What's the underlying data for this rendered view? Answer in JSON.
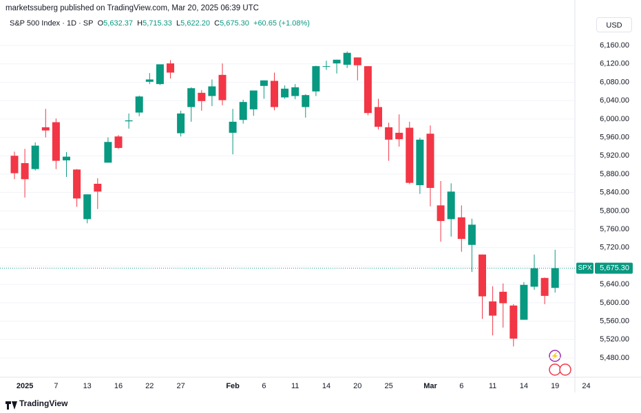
{
  "header": "marketssuberg published on TradingView.com, Mar 20, 2025 06:39 UTC",
  "footer": "TradingView",
  "currency_button": "USD",
  "legend": {
    "symbol": "S&P 500 Index · 1D · SP",
    "open_label": "O",
    "open": "5,632.37",
    "high_label": "H",
    "high": "5,715.33",
    "low_label": "L",
    "low": "5,622.20",
    "close_label": "C",
    "close": "5,675.30",
    "change": "+60.65 (+1.08%)"
  },
  "chart_data": {
    "type": "candlestick",
    "categories": [
      null,
      "2025",
      null,
      null,
      "7",
      null,
      null,
      "13",
      null,
      null,
      "16",
      null,
      null,
      "22",
      null,
      null,
      "27",
      null,
      null,
      null,
      null,
      "Feb",
      null,
      null,
      "6",
      null,
      null,
      "11",
      null,
      null,
      "14",
      null,
      null,
      "20",
      null,
      null,
      "25",
      null,
      null,
      null,
      "Mar",
      null,
      null,
      "6",
      null,
      null,
      "11",
      null,
      null,
      "14",
      null,
      null,
      "19",
      null,
      null,
      "24"
    ],
    "series": [
      {
        "name": "open",
        "values": [
          5920,
          5904,
          5891,
          5982,
          5993,
          5910,
          5890,
          5782,
          5859,
          5905,
          5962,
          5995,
          6014,
          6081,
          6076,
          6121,
          5969,
          6026,
          6057,
          6050,
          6096,
          5970,
          5998,
          6021,
          6072,
          6083,
          6047,
          6050,
          6026,
          6060,
          6115,
          6121,
          6118,
          6134,
          6115,
          6026,
          5982,
          5970,
          5981,
          5856,
          5968,
          5812,
          5782,
          5786,
          5726,
          5705,
          5603,
          5624,
          5594,
          5563,
          5635,
          5654,
          5632.37,
          null,
          null,
          null
        ]
      },
      {
        "name": "high",
        "values": [
          5929,
          5935,
          5949,
          6022,
          6001,
          5928,
          5891,
          5836,
          5871,
          5960,
          5965,
          6012,
          6051,
          6100,
          6119,
          6128,
          6018,
          6069,
          6063,
          6086,
          6121,
          6022,
          6042,
          6062,
          6084,
          6101,
          6073,
          6076,
          6054,
          6116,
          6127,
          6129,
          6147,
          6134,
          6115,
          6044,
          5992,
          6010,
          5994,
          5959,
          5986,
          5865,
          5860,
          5812,
          5783,
          5705,
          5636,
          5642,
          5597,
          5645,
          5705,
          5655,
          5715.33,
          null,
          null,
          null
        ]
      },
      {
        "name": "low",
        "values": [
          5869,
          5829,
          5888,
          5960,
          5891,
          5874,
          5809,
          5773,
          5804,
          5905,
          5935,
          5979,
          6006,
          6076,
          6074,
          6088,
          5962,
          5994,
          6018,
          6028,
          6030,
          5923,
          5990,
          6007,
          6044,
          6019,
          6044,
          6043,
          6003,
          6050,
          6107,
          6099,
          6111,
          6084,
          6008,
          5977,
          5909,
          5940,
          5858,
          5837,
          5810,
          5733,
          5744,
          5711,
          5667,
          5565,
          5529,
          5546,
          5505,
          5563,
          5628,
          5597,
          5622.2,
          null,
          null,
          null
        ]
      },
      {
        "name": "close",
        "values": [
          5882,
          5869,
          5942,
          5975,
          5909,
          5918,
          5827,
          5836,
          5842,
          5950,
          5937,
          5997,
          6049,
          6086,
          6119,
          6101,
          6012,
          6067,
          6039,
          6071,
          6041,
          5994,
          6037,
          6062,
          6084,
          6026,
          6066,
          6069,
          6052,
          6115,
          6115,
          6129,
          6144,
          6117,
          6013,
          5983,
          5955,
          5956,
          5861,
          5955,
          5850,
          5778,
          5842,
          5739,
          5770,
          5614,
          5572,
          5599,
          5522,
          5639,
          5675,
          5615,
          5675.3,
          null,
          null,
          null
        ]
      }
    ],
    "up_color": "#089981",
    "down_color": "#f23645",
    "ylim": [
      5438,
      6247
    ],
    "yticks": [
      {
        "value": 5480,
        "label": "5,480.00"
      },
      {
        "value": 5520,
        "label": "5,520.00"
      },
      {
        "value": 5560,
        "label": "5,560.00"
      },
      {
        "value": 5600,
        "label": "5,600.00"
      },
      {
        "value": 5640,
        "label": "5,640.00"
      },
      {
        "value": 5680,
        "label": "5,680.00"
      },
      {
        "value": 5720,
        "label": "5,720.00"
      },
      {
        "value": 5760,
        "label": "5,760.00"
      },
      {
        "value": 5800,
        "label": "5,800.00"
      },
      {
        "value": 5840,
        "label": "5,840.00"
      },
      {
        "value": 5880,
        "label": "5,880.00"
      },
      {
        "value": 5920,
        "label": "5,920.00"
      },
      {
        "value": 5960,
        "label": "5,960.00"
      },
      {
        "value": 6000,
        "label": "6,000.00"
      },
      {
        "value": 6040,
        "label": "6,040.00"
      },
      {
        "value": 6080,
        "label": "6,080.00"
      },
      {
        "value": 6120,
        "label": "6,120.00"
      },
      {
        "value": 6160,
        "label": "6,160.00"
      }
    ],
    "grid": true,
    "last_price": {
      "name": "SPX",
      "value": 5675.3,
      "label": "5,675.30"
    }
  }
}
